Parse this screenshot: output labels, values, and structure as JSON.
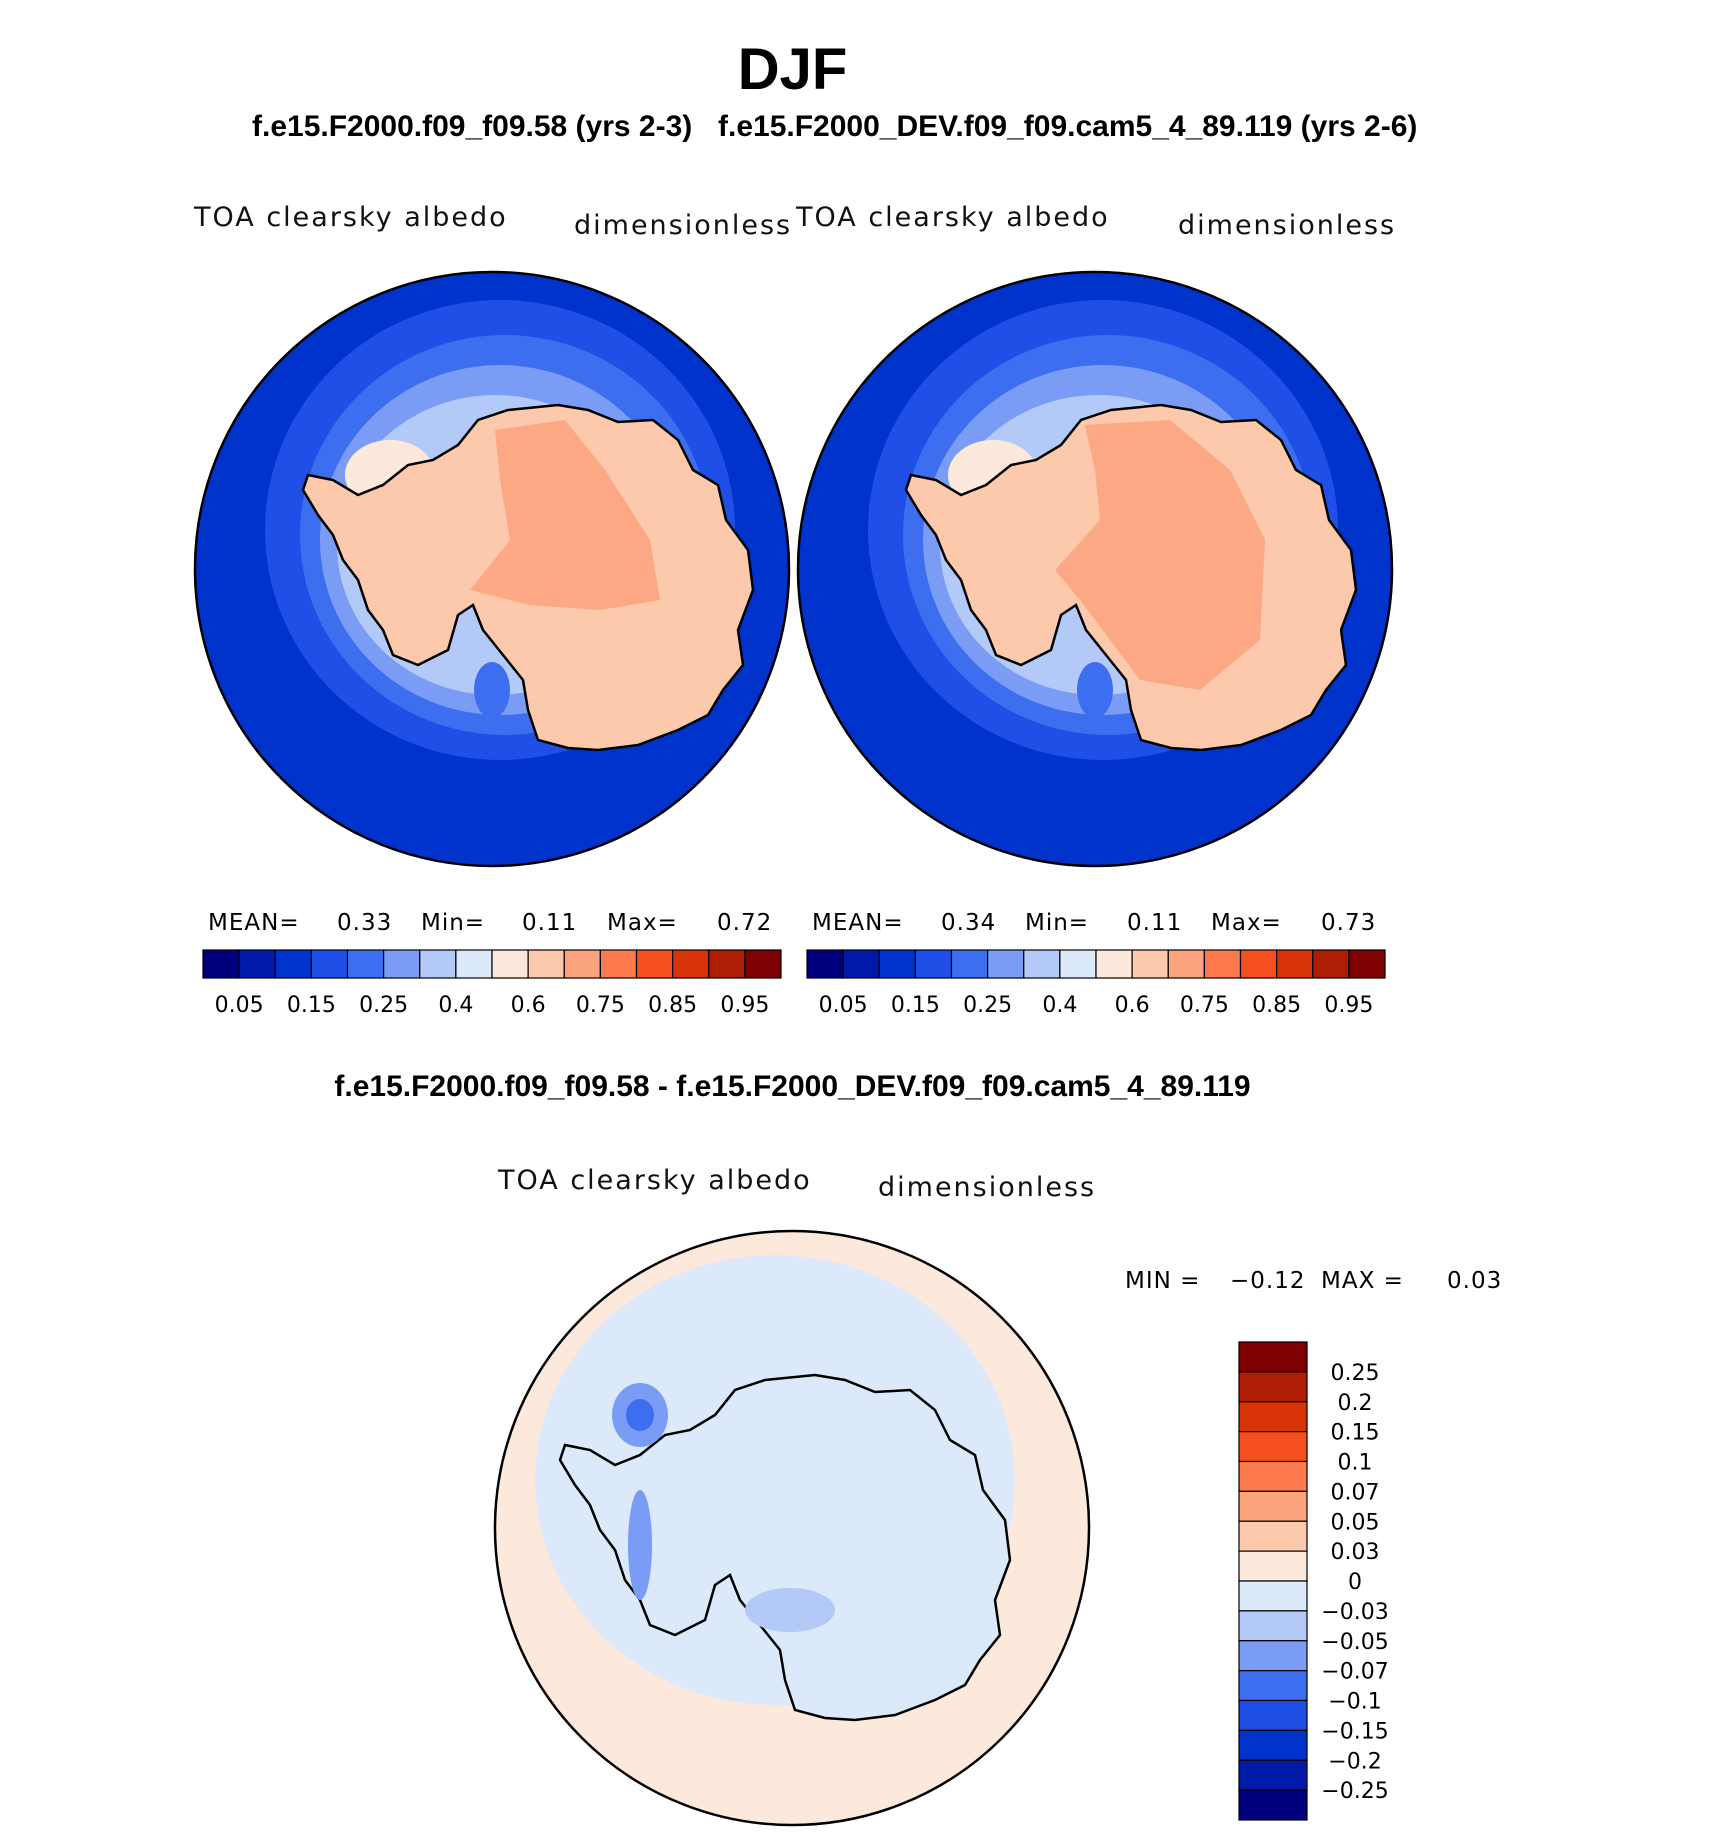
{
  "season": "DJF",
  "case_titles": {
    "left": "f.e15.F2000.f09_f09.58 (yrs 2-3)",
    "right": "f.e15.F2000_DEV.f09_f09.cam5_4_89.119 (yrs 2-6)"
  },
  "diff_title": "f.e15.F2000.f09_f09.58 - f.e15.F2000_DEV.f09_f09.cam5_4_89.119",
  "panels": [
    {
      "variable": "TOA clearsky albedo",
      "units": "dimensionless",
      "mean_label": "MEAN=",
      "mean": "0.33",
      "min_label": "Min=",
      "min": "0.11",
      "max_label": "Max=",
      "max": "0.72"
    },
    {
      "variable": "TOA clearsky albedo",
      "units": "dimensionless",
      "mean_label": "MEAN=",
      "mean": "0.34",
      "min_label": "Min=",
      "min": "0.11",
      "max_label": "Max=",
      "max": "0.73"
    }
  ],
  "diff_panel": {
    "variable": "TOA clearsky albedo",
    "units": "dimensionless",
    "min_label": "MIN =",
    "min": "−0.12",
    "max_label": "MAX =",
    "max": "0.03"
  },
  "colorbar_main": {
    "colors": [
      "#00007f",
      "#0019a8",
      "#0033cc",
      "#1f4fe6",
      "#3d6ef0",
      "#7a9cf5",
      "#b3c9f7",
      "#dce9fb",
      "#fde9dc",
      "#fcc9ad",
      "#fca27c",
      "#fc7a4d",
      "#f54f1f",
      "#d93308",
      "#b01d05",
      "#7f0000"
    ],
    "tick_labels": [
      "0.05",
      "0.15",
      "0.25",
      "0.4",
      "0.6",
      "0.75",
      "0.85",
      "0.95"
    ]
  },
  "colorbar_diff": {
    "colors_top_to_bottom": [
      "#7f0000",
      "#b01d05",
      "#d93308",
      "#f54f1f",
      "#fc7a4d",
      "#fca27c",
      "#fcc9ad",
      "#fde9dc",
      "#dce9fb",
      "#b3c9f7",
      "#7a9cf5",
      "#3d6ef0",
      "#1f4fe6",
      "#0033cc",
      "#0019a8",
      "#00007f"
    ],
    "tick_labels": [
      "0.25",
      "0.2",
      "0.15",
      "0.1",
      "0.07",
      "0.05",
      "0.03",
      "0",
      "−0.03",
      "−0.05",
      "−0.07",
      "−0.1",
      "−0.15",
      "−0.2",
      "−0.25"
    ]
  }
}
